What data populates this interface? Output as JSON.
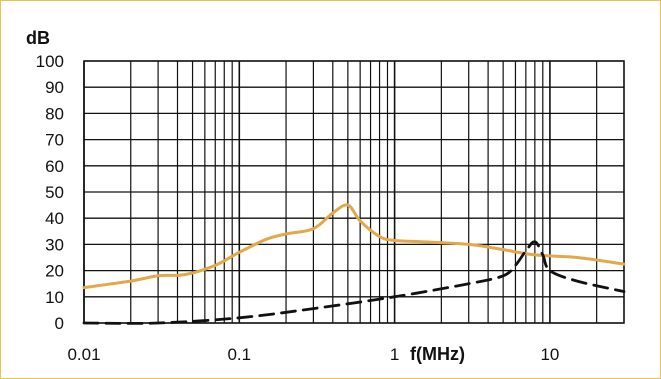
{
  "chart_data": {
    "type": "line",
    "title": "",
    "xlabel": "f(MHz)",
    "ylabel": "dB",
    "x_scale": "log",
    "xlim": [
      0.01,
      30
    ],
    "ylim": [
      0,
      100
    ],
    "grid": true,
    "x_tick_labels": [
      "0.01",
      "0.1",
      "1",
      "10"
    ],
    "x_tick_values": [
      0.01,
      0.1,
      1,
      10
    ],
    "y_tick_labels": [
      "0",
      "10",
      "20",
      "30",
      "40",
      "50",
      "60",
      "70",
      "80",
      "90",
      "100"
    ],
    "y_tick_values": [
      0,
      10,
      20,
      30,
      40,
      50,
      60,
      70,
      80,
      90,
      100
    ],
    "series": [
      {
        "color": "#e3a84a",
        "style": "solid",
        "x": [
          0.01,
          0.02,
          0.03,
          0.045,
          0.07,
          0.1,
          0.15,
          0.2,
          0.3,
          0.4,
          0.5,
          0.6,
          0.8,
          1.0,
          1.5,
          3,
          5,
          8,
          15,
          30
        ],
        "y": [
          13.5,
          16,
          18,
          18.5,
          22,
          27,
          32,
          34,
          36,
          42,
          45,
          39,
          33,
          31.5,
          31,
          30,
          28,
          26,
          25,
          22.5
        ]
      },
      {
        "color": "#111111",
        "style": "dashed",
        "x": [
          0.01,
          0.03,
          0.1,
          0.3,
          1,
          3,
          5,
          6,
          7,
          8,
          9,
          10,
          15,
          30
        ],
        "y": [
          0,
          0,
          2,
          5.5,
          10,
          15,
          18,
          22,
          27.5,
          31,
          26,
          20,
          16,
          12
        ]
      }
    ]
  }
}
